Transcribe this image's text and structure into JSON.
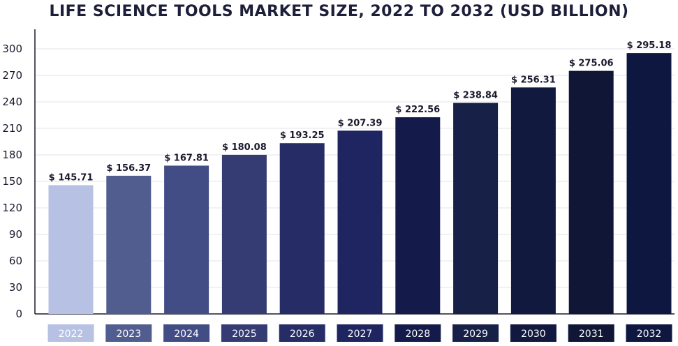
{
  "chart_data": {
    "type": "bar",
    "title": "LIFE SCIENCE TOOLS MARKET SIZE, 2022 TO 2032 (USD BILLION)",
    "xlabel": "",
    "ylabel": "",
    "categories": [
      "2022",
      "2023",
      "2024",
      "2025",
      "2026",
      "2027",
      "2028",
      "2029",
      "2030",
      "2031",
      "2032"
    ],
    "values": [
      145.71,
      156.37,
      167.81,
      180.08,
      193.25,
      207.39,
      222.56,
      238.84,
      256.31,
      275.06,
      295.18
    ],
    "data_labels": [
      "$ 145.71",
      "$ 156.37",
      "$ 167.81",
      "$ 180.08",
      "$ 193.25",
      "$ 207.39",
      "$ 222.56",
      "$ 238.84",
      "$ 256.31",
      "$ 275.06",
      "$ 295.18"
    ],
    "yticks": [
      0,
      30,
      60,
      90,
      120,
      150,
      180,
      210,
      240,
      270,
      300
    ],
    "ylim": [
      0,
      300
    ],
    "grid": true,
    "legend": "none",
    "bar_colors": [
      "#b7c1e3",
      "#525d8f",
      "#434d85",
      "#343c73",
      "#262d66",
      "#1e2560",
      "#141a4a",
      "#172047",
      "#12193f",
      "#0f1636",
      "#0d1740"
    ],
    "label_colors": [
      "#b7c1e3",
      "#525d8f",
      "#434d85",
      "#343c73",
      "#262d66",
      "#1e2560",
      "#141a4a",
      "#172047",
      "#12193f",
      "#0f1636",
      "#0d1740"
    ]
  }
}
